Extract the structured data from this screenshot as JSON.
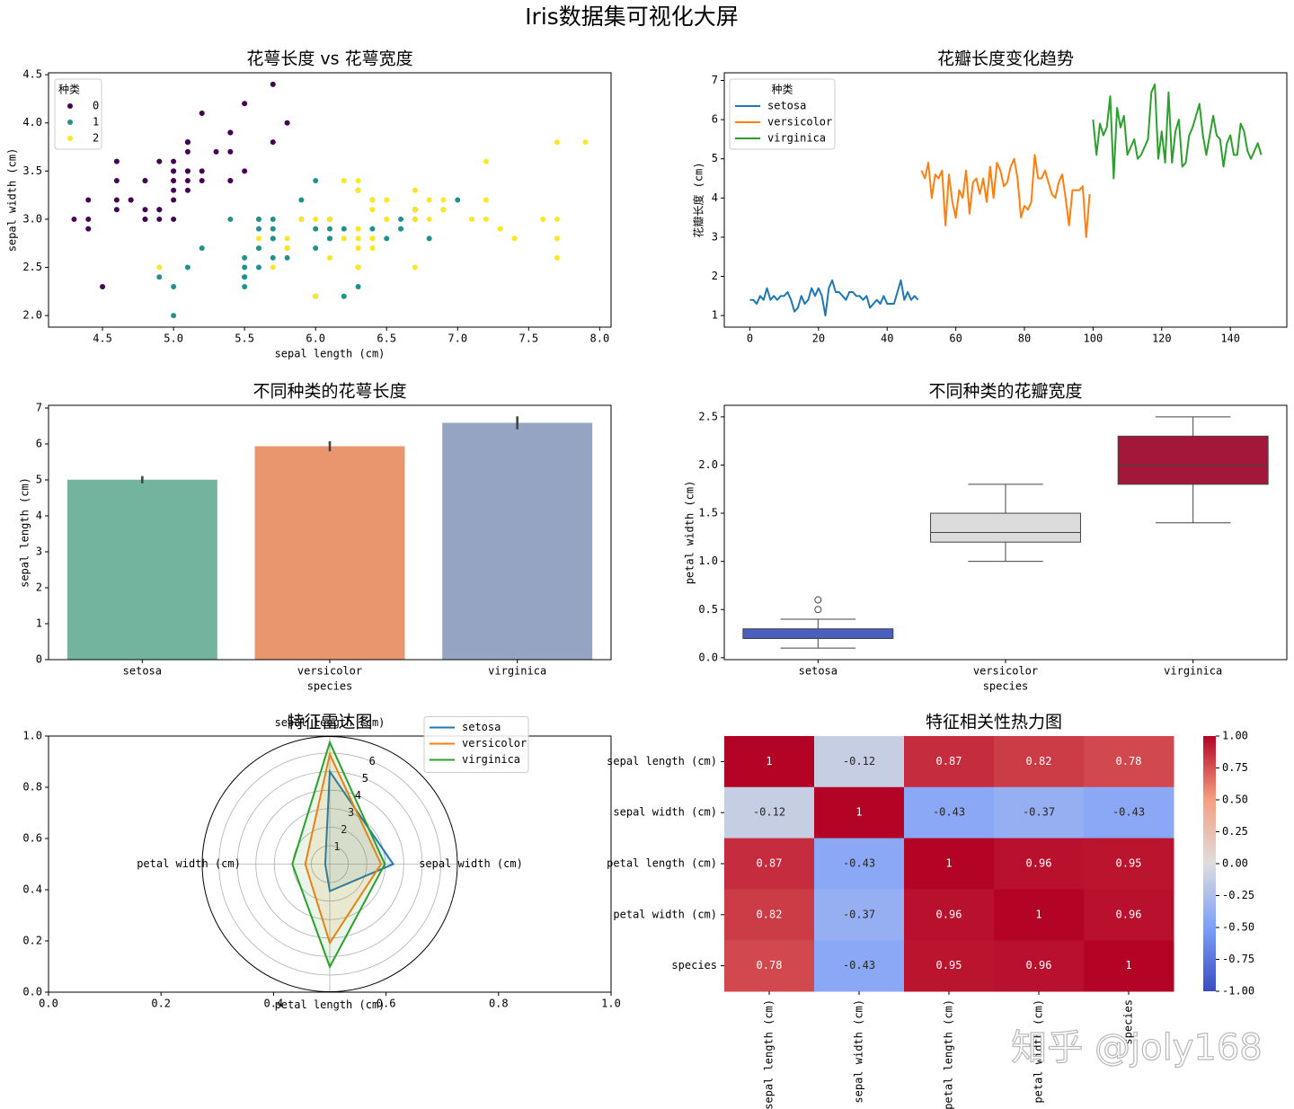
{
  "title": "Iris数据集可视化大屏",
  "watermark": "知乎 @joly168",
  "chart_data": [
    {
      "type": "scatter",
      "title": "花萼长度 vs 花萼宽度",
      "x_label": "sepal length (cm)",
      "y_label": "sepal width (cm)",
      "xlim": [
        4.12,
        8.08
      ],
      "ylim": [
        1.88,
        4.52
      ],
      "xticks": [
        4.5,
        {
          "value": 5,
          "label": "5.0"
        },
        5.5,
        {
          "value": 6,
          "label": "6.0"
        },
        6.5,
        {
          "value": 7,
          "label": "7.0"
        },
        7.5,
        {
          "value": 8,
          "label": "8.0"
        }
      ],
      "yticks": [
        {
          "value": 2,
          "label": "2.0"
        },
        2.5,
        {
          "value": 3,
          "label": "3.0"
        },
        3.5,
        {
          "value": 4,
          "label": "4.0"
        },
        4.5
      ],
      "legend_title": "种类",
      "legend": "upper left",
      "series": [
        {
          "name": "0",
          "color": "#440154",
          "x": [
            5.1,
            4.9,
            4.7,
            4.6,
            5.0,
            5.4,
            4.6,
            5.0,
            4.4,
            4.9,
            5.4,
            4.8,
            4.8,
            4.3,
            5.8,
            5.7,
            5.4,
            5.1,
            5.7,
            5.1,
            5.4,
            5.1,
            4.6,
            5.1,
            4.8,
            5.0,
            5.0,
            5.2,
            5.2,
            4.7,
            4.8,
            5.4,
            5.2,
            5.5,
            4.9,
            5.0,
            5.5,
            4.9,
            4.4,
            5.1,
            5.0,
            4.5,
            4.4,
            5.0,
            5.1,
            4.8,
            5.1,
            4.6,
            5.3,
            5.0
          ],
          "values": [
            3.5,
            3.0,
            3.2,
            3.1,
            3.6,
            3.9,
            3.4,
            3.4,
            2.9,
            3.1,
            3.7,
            3.4,
            3.0,
            3.0,
            4.0,
            4.4,
            3.9,
            3.5,
            3.8,
            3.8,
            3.4,
            3.7,
            3.6,
            3.3,
            3.4,
            3.0,
            3.4,
            3.5,
            3.4,
            3.2,
            3.1,
            3.4,
            4.1,
            4.2,
            3.1,
            3.2,
            3.5,
            3.6,
            3.0,
            3.4,
            3.5,
            2.3,
            3.2,
            3.5,
            3.8,
            3.0,
            3.8,
            3.2,
            3.7,
            3.3
          ]
        },
        {
          "name": "1",
          "color": "#21918c",
          "x": [
            7.0,
            6.4,
            6.9,
            5.5,
            6.5,
            5.7,
            6.3,
            4.9,
            6.6,
            5.2,
            5.0,
            5.9,
            6.0,
            6.1,
            5.6,
            6.7,
            5.6,
            5.8,
            6.2,
            5.6,
            5.9,
            6.1,
            6.3,
            6.1,
            6.4,
            6.6,
            6.8,
            6.7,
            6.0,
            5.7,
            5.5,
            5.5,
            5.8,
            6.0,
            5.4,
            6.0,
            6.7,
            6.3,
            5.6,
            5.5,
            5.5,
            6.1,
            5.8,
            5.0,
            5.6,
            5.7,
            5.7,
            6.2,
            5.1,
            5.7
          ],
          "values": [
            3.2,
            3.2,
            3.1,
            2.3,
            2.8,
            2.8,
            3.3,
            2.4,
            2.9,
            2.7,
            2.0,
            3.0,
            2.2,
            2.9,
            2.9,
            3.1,
            3.0,
            2.7,
            2.2,
            2.5,
            3.2,
            2.8,
            2.5,
            2.8,
            2.9,
            3.0,
            2.8,
            3.0,
            2.9,
            2.6,
            2.4,
            2.4,
            2.7,
            2.7,
            3.0,
            3.4,
            3.1,
            2.3,
            3.0,
            2.5,
            2.6,
            3.0,
            2.6,
            2.3,
            2.7,
            3.0,
            2.9,
            2.9,
            2.5,
            2.8
          ]
        },
        {
          "name": "2",
          "color": "#fde725",
          "x": [
            6.3,
            5.8,
            7.1,
            6.3,
            6.5,
            7.6,
            4.9,
            7.3,
            6.7,
            7.2,
            6.5,
            6.4,
            6.8,
            5.7,
            5.8,
            6.4,
            6.5,
            7.7,
            7.7,
            6.0,
            6.9,
            5.6,
            7.7,
            6.3,
            6.7,
            7.2,
            6.2,
            6.1,
            6.4,
            7.2,
            7.4,
            7.9,
            6.4,
            6.3,
            6.1,
            7.7,
            6.3,
            6.4,
            6.0,
            6.9,
            6.7,
            6.9,
            5.8,
            6.8,
            6.7,
            6.7,
            6.3,
            6.5,
            6.2,
            5.9
          ],
          "values": [
            3.3,
            2.7,
            3.0,
            2.9,
            3.0,
            3.0,
            2.5,
            2.9,
            2.5,
            3.6,
            3.2,
            2.7,
            3.0,
            2.5,
            2.8,
            3.2,
            3.0,
            3.8,
            2.6,
            2.2,
            3.2,
            2.8,
            2.8,
            2.7,
            3.3,
            3.2,
            2.8,
            3.0,
            2.8,
            3.0,
            2.8,
            3.8,
            2.8,
            2.8,
            2.6,
            3.0,
            3.4,
            3.1,
            3.0,
            3.1,
            3.1,
            3.1,
            2.7,
            3.2,
            3.3,
            3.0,
            2.5,
            3.0,
            3.4,
            3.0
          ]
        }
      ]
    },
    {
      "type": "line",
      "title": "花瓣长度变化趋势",
      "y_label": "花瓣长度 (cm)",
      "xlim": [
        -7.45,
        156.45
      ],
      "ylim": [
        0.705,
        7.195
      ],
      "xticks": [
        0,
        20,
        40,
        60,
        80,
        100,
        120,
        140
      ],
      "yticks": [
        1,
        2,
        3,
        4,
        5,
        6,
        7
      ],
      "legend_title": "种类",
      "legend": "upper left",
      "series": [
        {
          "name": "setosa",
          "color": "#1f77b4",
          "x": [
            0,
            1,
            2,
            3,
            4,
            5,
            6,
            7,
            8,
            9,
            10,
            11,
            12,
            13,
            14,
            15,
            16,
            17,
            18,
            19,
            20,
            21,
            22,
            23,
            24,
            25,
            26,
            27,
            28,
            29,
            30,
            31,
            32,
            33,
            34,
            35,
            36,
            37,
            38,
            39,
            40,
            41,
            42,
            43,
            44,
            45,
            46,
            47,
            48,
            49
          ],
          "values": [
            1.4,
            1.4,
            1.3,
            1.5,
            1.4,
            1.7,
            1.4,
            1.5,
            1.4,
            1.5,
            1.5,
            1.6,
            1.4,
            1.1,
            1.2,
            1.5,
            1.3,
            1.4,
            1.7,
            1.5,
            1.7,
            1.5,
            1.0,
            1.7,
            1.9,
            1.6,
            1.6,
            1.5,
            1.4,
            1.6,
            1.6,
            1.5,
            1.5,
            1.4,
            1.5,
            1.2,
            1.3,
            1.4,
            1.3,
            1.5,
            1.3,
            1.3,
            1.3,
            1.6,
            1.9,
            1.4,
            1.6,
            1.4,
            1.5,
            1.4
          ]
        },
        {
          "name": "versicolor",
          "color": "#ff7f0e",
          "x": [
            50,
            51,
            52,
            53,
            54,
            55,
            56,
            57,
            58,
            59,
            60,
            61,
            62,
            63,
            64,
            65,
            66,
            67,
            68,
            69,
            70,
            71,
            72,
            73,
            74,
            75,
            76,
            77,
            78,
            79,
            80,
            81,
            82,
            83,
            84,
            85,
            86,
            87,
            88,
            89,
            90,
            91,
            92,
            93,
            94,
            95,
            96,
            97,
            98,
            99
          ],
          "values": [
            4.7,
            4.5,
            4.9,
            4.0,
            4.6,
            4.5,
            4.7,
            3.3,
            4.6,
            3.9,
            3.5,
            4.2,
            4.0,
            4.7,
            3.6,
            4.4,
            4.5,
            4.1,
            4.5,
            3.9,
            4.8,
            4.0,
            4.9,
            4.7,
            4.3,
            4.4,
            4.8,
            5.0,
            4.5,
            3.5,
            3.8,
            3.7,
            3.9,
            5.1,
            4.5,
            4.5,
            4.7,
            4.4,
            4.1,
            4.0,
            4.4,
            4.6,
            4.0,
            3.3,
            4.2,
            4.2,
            4.2,
            4.3,
            3.0,
            4.1
          ]
        },
        {
          "name": "virginica",
          "color": "#2ca02c",
          "x": [
            100,
            101,
            102,
            103,
            104,
            105,
            106,
            107,
            108,
            109,
            110,
            111,
            112,
            113,
            114,
            115,
            116,
            117,
            118,
            119,
            120,
            121,
            122,
            123,
            124,
            125,
            126,
            127,
            128,
            129,
            130,
            131,
            132,
            133,
            134,
            135,
            136,
            137,
            138,
            139,
            140,
            141,
            142,
            143,
            144,
            145,
            146,
            147,
            148,
            149
          ],
          "values": [
            6.0,
            5.1,
            5.9,
            5.6,
            5.8,
            6.6,
            4.5,
            6.3,
            5.8,
            6.1,
            5.1,
            5.3,
            5.5,
            5.0,
            5.1,
            5.3,
            5.5,
            6.7,
            6.9,
            5.0,
            5.7,
            4.9,
            6.7,
            4.9,
            5.7,
            6.0,
            4.8,
            4.9,
            5.6,
            5.8,
            6.1,
            6.4,
            5.6,
            5.1,
            5.6,
            6.1,
            5.6,
            5.5,
            4.8,
            5.4,
            5.6,
            5.1,
            5.1,
            5.9,
            5.7,
            5.2,
            5.0,
            5.2,
            5.4,
            5.1
          ]
        }
      ]
    },
    {
      "type": "bar",
      "title": "不同种类的花萼长度",
      "x_label": "species",
      "y_label": "sepal length (cm)",
      "categories": [
        "setosa",
        "versicolor",
        "virginica"
      ],
      "values": [
        5.006,
        5.936,
        6.588
      ],
      "errors": [
        0.1,
        0.14,
        0.18
      ],
      "colors": [
        "#73b49f",
        "#e9966f",
        "#94a4c2"
      ],
      "ylim": [
        0,
        7.075
      ],
      "yticks": [
        0,
        1,
        2,
        3,
        4,
        5,
        6,
        7
      ]
    },
    {
      "type": "box",
      "title": "不同种类的花瓣宽度",
      "x_label": "species",
      "y_label": "petal width (cm)",
      "categories": [
        "setosa",
        "versicolor",
        "virginica"
      ],
      "whislo": [
        0.1,
        1.0,
        1.4
      ],
      "q1": [
        0.2,
        1.2,
        1.8
      ],
      "median": [
        0.2,
        1.3,
        2.0
      ],
      "q3": [
        0.3,
        1.5,
        2.3
      ],
      "whishi": [
        0.4,
        1.8,
        2.5
      ],
      "fliers": [
        [
          0.5,
          0.6
        ],
        [],
        []
      ],
      "colors": [
        "#4a5fbf",
        "#dcdcdc",
        "#a3183a"
      ],
      "ylim": [
        -0.02,
        2.62
      ],
      "yticks": [
        {
          "value": 0,
          "label": "0.0"
        },
        0.5,
        {
          "value": 1,
          "label": "1.0"
        },
        1.5,
        {
          "value": 2,
          "label": "2.0"
        },
        2.5
      ]
    },
    {
      "type": "radar",
      "title": "特征雷达图",
      "categories": [
        "sepal length (cm)",
        "sepal width (cm)",
        "petal length (cm)",
        "petal width (cm)"
      ],
      "rlim": [
        0,
        6.9
      ],
      "rticks": [
        1,
        2,
        3,
        4,
        5,
        6
      ],
      "xlim": [
        0,
        1
      ],
      "ylim": [
        0,
        1
      ],
      "xticks": [
        {
          "value": 0,
          "label": "0.0"
        },
        0.2,
        0.4,
        0.6,
        0.8,
        {
          "value": 1,
          "label": "1.0"
        }
      ],
      "yticks": [
        {
          "value": 0,
          "label": "0.0"
        },
        0.2,
        0.4,
        0.6,
        0.8,
        {
          "value": 1,
          "label": "1.0"
        }
      ],
      "legend": "upper right",
      "series": [
        {
          "name": "setosa",
          "color": "#1f77b4",
          "values": [
            5.006,
            3.428,
            1.462,
            0.246
          ]
        },
        {
          "name": "versicolor",
          "color": "#ff7f0e",
          "values": [
            5.936,
            2.77,
            4.26,
            1.326
          ]
        },
        {
          "name": "virginica",
          "color": "#2ca02c",
          "values": [
            6.588,
            2.974,
            5.552,
            2.026
          ]
        }
      ]
    },
    {
      "type": "heatmap",
      "title": "特征相关性热力图",
      "colormap": "coolwarm",
      "categories": [
        "sepal length (cm)",
        "sepal width (cm)",
        "petal length (cm)",
        "petal width (cm)",
        "species"
      ],
      "values": [
        [
          1,
          -0.12,
          0.87,
          0.82,
          0.78
        ],
        [
          -0.12,
          1,
          -0.43,
          -0.37,
          -0.43
        ],
        [
          0.87,
          -0.43,
          1,
          0.96,
          0.95
        ],
        [
          0.82,
          -0.37,
          0.96,
          1,
          0.96
        ],
        [
          0.78,
          -0.43,
          0.95,
          0.96,
          1
        ]
      ],
      "clim": [
        -1,
        1
      ],
      "cticks": [
        {
          "value": -1,
          "label": "-1.00"
        },
        {
          "value": -0.75,
          "label": "-0.75"
        },
        {
          "value": -0.5,
          "label": "-0.50"
        },
        {
          "value": -0.25,
          "label": "-0.25"
        },
        {
          "value": 0,
          "label": "0.00"
        },
        {
          "value": 0.25,
          "label": "0.25"
        },
        {
          "value": 0.5,
          "label": "0.50"
        },
        {
          "value": 0.75,
          "label": "0.75"
        },
        {
          "value": 1,
          "label": "1.00"
        }
      ]
    }
  ]
}
